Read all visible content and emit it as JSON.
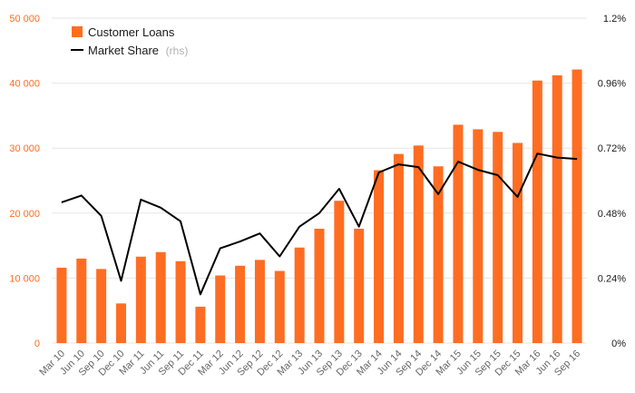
{
  "chart_data": {
    "type": "bar+line",
    "categories": [
      "Mar 10",
      "Jun 10",
      "Sep 10",
      "Dec 10",
      "Mar 11",
      "Jun 11",
      "Sep 11",
      "Dec 11",
      "Mar 12",
      "Jun 12",
      "Sep 12",
      "Dec 12",
      "Mar 13",
      "Jun 13",
      "Sep 13",
      "Dec 13",
      "Mar 14",
      "Jun 14",
      "Sep 14",
      "Dec 14",
      "Mar 15",
      "Jun 15",
      "Sep 15",
      "Dec 15",
      "Mar 16",
      "Jun 16",
      "Sep 16"
    ],
    "series": [
      {
        "name": "Customer Loans",
        "type": "bar",
        "axis": "left",
        "color": "#ff6d22",
        "values": [
          11600,
          13000,
          11400,
          6100,
          13300,
          14000,
          12600,
          5600,
          10400,
          11900,
          12800,
          11100,
          14700,
          17600,
          21900,
          17600,
          26600,
          29100,
          30400,
          27200,
          33600,
          32900,
          32500,
          30800,
          40400,
          41200,
          42100
        ]
      },
      {
        "name": "Market Share",
        "note": "(rhs)",
        "type": "line",
        "axis": "right",
        "color": "#000000",
        "values": [
          0.52,
          0.545,
          0.47,
          0.23,
          0.53,
          0.5,
          0.45,
          0.18,
          0.35,
          0.375,
          0.405,
          0.32,
          0.43,
          0.48,
          0.57,
          0.43,
          0.63,
          0.66,
          0.65,
          0.55,
          0.67,
          0.64,
          0.62,
          0.54,
          0.7,
          0.685,
          0.68
        ]
      }
    ],
    "y_left": {
      "ticks": [
        "0",
        "10 000",
        "20 000",
        "30 000",
        "40 000",
        "50 000"
      ],
      "ylim": [
        0,
        50000
      ],
      "color": "#ff6d22"
    },
    "y_right": {
      "ticks": [
        "0%",
        "0.24%",
        "0.48%",
        "0.72%",
        "0.96%",
        "1.2%"
      ],
      "ylim": [
        0,
        1.2
      ]
    },
    "grid": true,
    "legend_position": "top-left"
  }
}
